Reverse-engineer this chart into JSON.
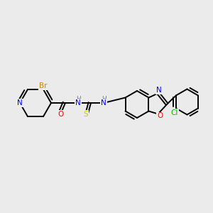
{
  "bg_color": "#ebebeb",
  "bond_color": "#000000",
  "atom_colors": {
    "N": "#0000ff",
    "O": "#ff0000",
    "S": "#cccc00",
    "Br": "#cc8800",
    "Cl": "#00bb00",
    "H": "#5588aa",
    "C": "#000000"
  },
  "line_width": 1.4,
  "dbo": 3.5,
  "fontsize": 7.5
}
